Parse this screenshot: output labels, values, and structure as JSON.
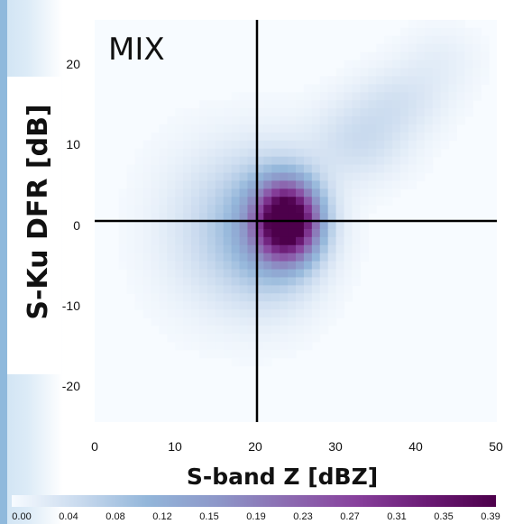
{
  "chart_data": {
    "type": "heatmap",
    "panel_label": "MIX",
    "xlabel": "S-band Z [dBZ]",
    "ylabel": "S-Ku DFR [dB]",
    "xlim": [
      0,
      50
    ],
    "ylim": [
      -25,
      25
    ],
    "x_ticks": [
      "0",
      "10",
      "20",
      "30",
      "40",
      "50"
    ],
    "y_ticks": [
      "20",
      "10",
      "0",
      "-10",
      "-20"
    ],
    "reference_lines": {
      "x": 20,
      "y": 0
    },
    "colorbar": {
      "ticks": [
        "0.00",
        "0.04",
        "0.08",
        "0.12",
        "0.15",
        "0.19",
        "0.23",
        "0.27",
        "0.31",
        "0.35",
        "0.39"
      ],
      "range": [
        0,
        0.39
      ],
      "colors": [
        "#f7fbff",
        "#c9daee",
        "#93b6da",
        "#8d96c8",
        "#8c6bb1",
        "#88419d",
        "#6a1a74",
        "#4d004b"
      ]
    },
    "density_components": [
      {
        "x": 24,
        "y": 0,
        "amp": 0.39,
        "sx": 2.6,
        "sy": 3.2
      },
      {
        "x": 22,
        "y": -1,
        "amp": 0.12,
        "sx": 4.5,
        "sy": 6
      },
      {
        "x": 15,
        "y": -1,
        "amp": 0.045,
        "sx": 5.5,
        "sy": 7
      },
      {
        "x": 33,
        "y": 10,
        "amp": 0.05,
        "sx": 4.2,
        "sy": 3.5
      },
      {
        "x": 38,
        "y": 15,
        "amp": 0.035,
        "sx": 4,
        "sy": 3
      },
      {
        "x": 43,
        "y": 20,
        "amp": 0.02,
        "sx": 3.5,
        "sy": 3
      }
    ]
  }
}
